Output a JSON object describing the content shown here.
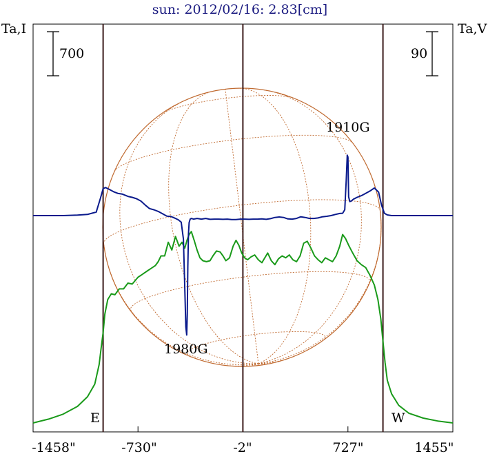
{
  "chart_data": {
    "type": "line",
    "title": "sun: 2012/02/16: 2.83[cm]",
    "left_axis_label": "Ta,I",
    "right_axis_label": "Ta,V",
    "left_scale_bar": "700",
    "right_scale_bar": "90",
    "x_tick_labels": [
      "-1458\"",
      "-730\"",
      "-2\"",
      "727\"",
      "1455\""
    ],
    "x_ticks": [
      -1458,
      -730,
      -2,
      727,
      1455
    ],
    "xlim": [
      -1458,
      1455
    ],
    "limb_markers": [
      {
        "label": "E",
        "x": -972
      },
      {
        "label": "W",
        "x": 970
      }
    ],
    "center_line_x": -2,
    "annotations": [
      {
        "text": "1980G",
        "x": -385
      },
      {
        "text": "1910G",
        "x": 727
      }
    ],
    "series": [
      {
        "name": "I",
        "color": "#1a9a1a",
        "x": [
          -1458,
          -1350,
          -1250,
          -1150,
          -1080,
          -1030,
          -1000,
          -985,
          -972,
          -960,
          -940,
          -915,
          -890,
          -860,
          -830,
          -800,
          -770,
          -730,
          -700,
          -670,
          -640,
          -610,
          -590,
          -570,
          -545,
          -520,
          -495,
          -470,
          -445,
          -425,
          -405,
          -390,
          -375,
          -360,
          -340,
          -320,
          -300,
          -280,
          -255,
          -230,
          -210,
          -185,
          -160,
          -140,
          -120,
          -95,
          -70,
          -50,
          -30,
          -10,
          10,
          30,
          55,
          80,
          105,
          130,
          150,
          170,
          195,
          220,
          245,
          270,
          295,
          320,
          345,
          370,
          395,
          420,
          445,
          470,
          495,
          520,
          545,
          570,
          595,
          620,
          645,
          670,
          690,
          710,
          735,
          760,
          790,
          820,
          850,
          880,
          910,
          935,
          955,
          970,
          985,
          1000,
          1030,
          1080,
          1150,
          1250,
          1350,
          1455
        ],
        "values": [
          0.0,
          0.04,
          0.09,
          0.17,
          0.27,
          0.4,
          0.6,
          0.78,
          0.93,
          1.12,
          1.27,
          1.33,
          1.32,
          1.38,
          1.38,
          1.44,
          1.43,
          1.5,
          1.53,
          1.56,
          1.59,
          1.62,
          1.66,
          1.72,
          1.72,
          1.86,
          1.78,
          1.92,
          1.82,
          1.86,
          1.8,
          1.88,
          1.94,
          1.97,
          1.88,
          1.78,
          1.7,
          1.67,
          1.66,
          1.67,
          1.72,
          1.77,
          1.76,
          1.72,
          1.67,
          1.7,
          1.82,
          1.88,
          1.83,
          1.75,
          1.7,
          1.68,
          1.71,
          1.73,
          1.68,
          1.65,
          1.7,
          1.75,
          1.67,
          1.63,
          1.69,
          1.72,
          1.7,
          1.73,
          1.68,
          1.66,
          1.72,
          1.85,
          1.87,
          1.8,
          1.72,
          1.68,
          1.65,
          1.7,
          1.68,
          1.66,
          1.72,
          1.82,
          1.94,
          1.9,
          1.82,
          1.75,
          1.67,
          1.63,
          1.6,
          1.52,
          1.42,
          1.27,
          1.07,
          0.84,
          0.62,
          0.44,
          0.3,
          0.18,
          0.1,
          0.05,
          0.02,
          0.0
        ]
      },
      {
        "name": "V",
        "color": "#0a1a8c",
        "x": [
          -1458,
          -1350,
          -1250,
          -1150,
          -1080,
          -1020,
          -990,
          -972,
          -955,
          -930,
          -900,
          -870,
          -840,
          -800,
          -770,
          -740,
          -710,
          -680,
          -650,
          -620,
          -590,
          -560,
          -530,
          -500,
          -470,
          -450,
          -430,
          -415,
          -405,
          -398,
          -392,
          -388,
          -384,
          -380,
          -375,
          -368,
          -360,
          -345,
          -320,
          -290,
          -260,
          -230,
          -200,
          -170,
          -140,
          -110,
          -80,
          -50,
          -20,
          10,
          40,
          70,
          100,
          130,
          160,
          190,
          220,
          250,
          280,
          310,
          340,
          370,
          400,
          430,
          460,
          490,
          520,
          550,
          580,
          610,
          640,
          670,
          690,
          705,
          715,
          722,
          727,
          732,
          740,
          750,
          765,
          790,
          820,
          850,
          880,
          910,
          940,
          960,
          980,
          1000,
          1030,
          1080,
          1150,
          1250,
          1350,
          1455
        ],
        "values": [
          0,
          0,
          0,
          2,
          5,
          15,
          75,
          115,
          120,
          112,
          102,
          95,
          92,
          82,
          78,
          72,
          62,
          45,
          30,
          25,
          18,
          8,
          -2,
          -4,
          -12,
          -18,
          -28,
          -100,
          -310,
          -475,
          -510,
          -420,
          -220,
          -80,
          -30,
          -15,
          -12,
          -15,
          -12,
          -15,
          -12,
          -16,
          -15,
          -15,
          -16,
          -15,
          -17,
          -17,
          -15,
          -15,
          -16,
          -15,
          -15,
          -14,
          -16,
          -13,
          -8,
          -6,
          -8,
          -14,
          -15,
          -12,
          -5,
          -8,
          -12,
          -12,
          -10,
          -5,
          -3,
          0,
          5,
          9,
          10,
          25,
          150,
          258,
          250,
          80,
          60,
          62,
          70,
          78,
          85,
          95,
          105,
          118,
          100,
          45,
          10,
          3,
          0,
          0,
          0,
          0,
          0,
          0
        ]
      }
    ]
  }
}
